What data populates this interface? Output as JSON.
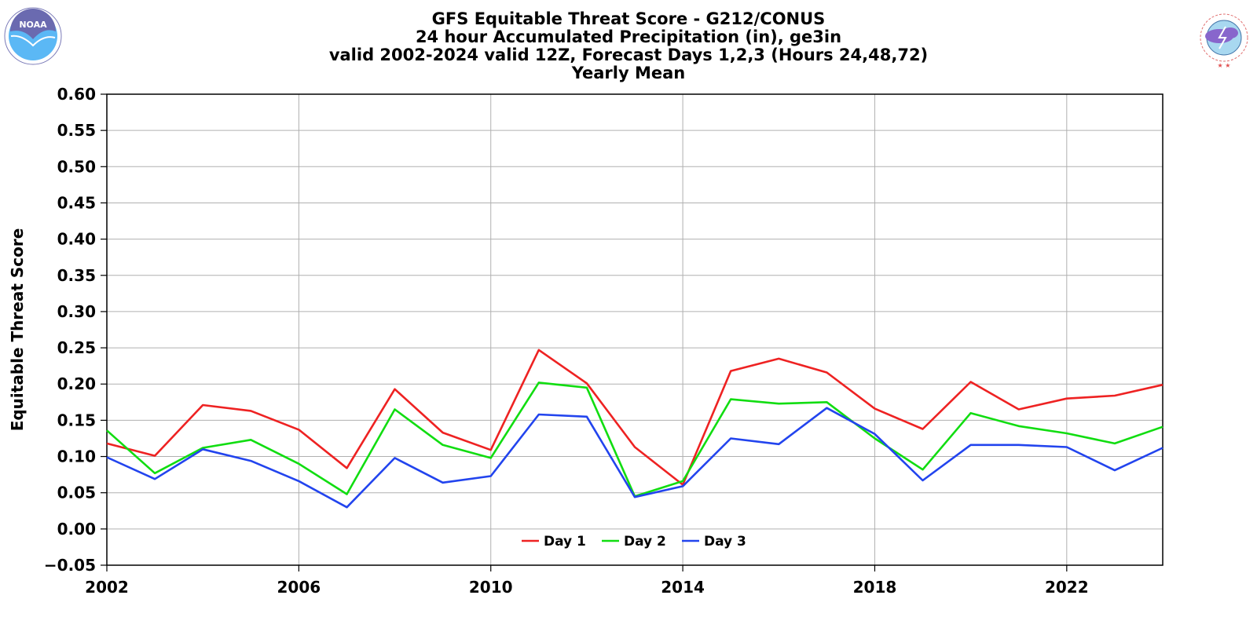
{
  "logos": {
    "left": {
      "name": "noaa-logo",
      "text": "NOAA",
      "color": "#3399ff"
    },
    "right": {
      "name": "nws-logo",
      "text": "NATIONAL WEATHER SERVICE",
      "color": "#e05050"
    }
  },
  "chart_data": {
    "type": "line",
    "title_lines": [
      "GFS Equitable Threat Score - G212/CONUS",
      "24 hour Accumulated Precipitation (in), ge3in",
      "valid 2002-2024 valid 12Z, Forecast Days 1,2,3 (Hours 24,48,72)",
      "Yearly Mean"
    ],
    "xlabel": "",
    "ylabel": "Equitable Threat Score",
    "xlim": [
      2002,
      2024
    ],
    "ylim": [
      -0.05,
      0.6
    ],
    "xticks": [
      2002,
      2006,
      2010,
      2014,
      2018,
      2022
    ],
    "yticks": [
      -0.05,
      0.0,
      0.05,
      0.1,
      0.15,
      0.2,
      0.25,
      0.3,
      0.35,
      0.4,
      0.45,
      0.5,
      0.55,
      0.6
    ],
    "ytick_labels": [
      "−0.05",
      "0.00",
      "0.05",
      "0.10",
      "0.15",
      "0.20",
      "0.25",
      "0.30",
      "0.35",
      "0.40",
      "0.45",
      "0.50",
      "0.55",
      "0.60"
    ],
    "grid": true,
    "legend_position": "bottom-center",
    "x": [
      2002,
      2003,
      2004,
      2005,
      2006,
      2007,
      2008,
      2009,
      2010,
      2011,
      2012,
      2013,
      2014,
      2015,
      2016,
      2017,
      2018,
      2019,
      2020,
      2021,
      2022,
      2023,
      2024
    ],
    "series": [
      {
        "name": "Day 1",
        "color": "#ee2222",
        "values": [
          0.118,
          0.101,
          0.171,
          0.163,
          0.137,
          0.084,
          0.193,
          0.133,
          0.109,
          0.247,
          0.201,
          0.113,
          0.061,
          0.218,
          0.235,
          0.216,
          0.166,
          0.138,
          0.203,
          0.165,
          0.18,
          0.184,
          0.199
        ]
      },
      {
        "name": "Day 2",
        "color": "#11dd11",
        "values": [
          0.136,
          0.077,
          0.112,
          0.123,
          0.09,
          0.048,
          0.165,
          0.116,
          0.098,
          0.202,
          0.195,
          0.045,
          0.066,
          0.179,
          0.173,
          0.175,
          0.125,
          0.082,
          0.16,
          0.142,
          0.132,
          0.118,
          0.141
        ]
      },
      {
        "name": "Day 3",
        "color": "#2244ee",
        "values": [
          0.099,
          0.069,
          0.11,
          0.094,
          0.066,
          0.03,
          0.098,
          0.064,
          0.073,
          0.158,
          0.155,
          0.044,
          0.059,
          0.125,
          0.117,
          0.167,
          0.131,
          0.067,
          0.116,
          0.116,
          0.113,
          0.081,
          0.112
        ]
      }
    ]
  }
}
